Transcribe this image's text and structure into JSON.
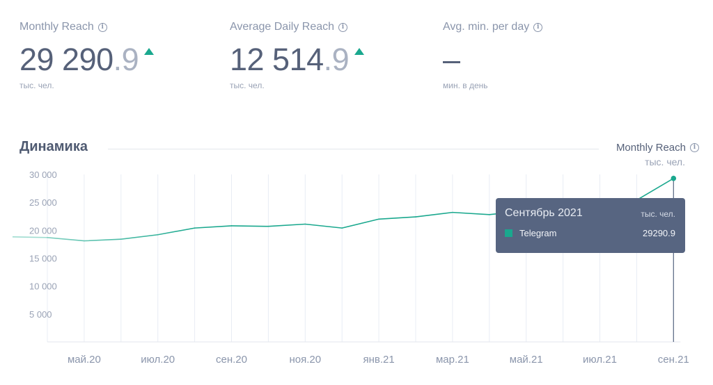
{
  "metrics": [
    {
      "label": "Monthly Reach",
      "int": "29 290",
      "dec": ".9",
      "unit": "тыс. чел."
    },
    {
      "label": "Average Daily Reach",
      "int": "12 514",
      "dec": ".9",
      "unit": "тыс. чел."
    },
    {
      "label": "Avg. min. per day",
      "value": "–",
      "unit": "мин. в день"
    }
  ],
  "section": {
    "title": "Динамика",
    "metric": "Monthly Reach",
    "unit": "тыс. чел."
  },
  "tooltip": {
    "title": "Сентябрь 2021",
    "unit": "тыс. чел.",
    "series": "Telegram",
    "value": "29290.9"
  },
  "colors": {
    "line": "#1aa88e",
    "line_faded": "#9fdcd0",
    "tooltip_bg": "#576581",
    "grid": "#e8ecf4"
  },
  "chart_data": {
    "type": "line",
    "ylim": [
      0,
      30000
    ],
    "yticks": [
      "30 000",
      "25 000",
      "20 000",
      "15 000",
      "10 000",
      "5 000"
    ],
    "ytick_values": [
      30000,
      25000,
      20000,
      15000,
      10000,
      5000
    ],
    "x_tick_labels": [
      "май.20",
      "июл.20",
      "сен.20",
      "ноя.20",
      "янв.21",
      "мар.21",
      "май.21",
      "июл.21",
      "сен.21"
    ],
    "x_tick_indices": [
      1,
      3,
      5,
      7,
      9,
      11,
      13,
      15,
      17
    ],
    "series": [
      {
        "name": "Telegram",
        "x": [
          "апр.20",
          "май.20",
          "июн.20",
          "июл.20",
          "авг.20",
          "сен.20",
          "окт.20",
          "ноя.20",
          "дек.20",
          "янв.21",
          "фев.21",
          "мар.21",
          "апр.21",
          "май.21",
          "июн.21",
          "июл.21",
          "авг.21",
          "сен.21"
        ],
        "values": [
          18700,
          18100,
          18400,
          19200,
          20400,
          20800,
          20700,
          21100,
          20400,
          22000,
          22400,
          23200,
          22800,
          23500,
          24000,
          24600,
          25400,
          29290.9
        ]
      }
    ]
  }
}
